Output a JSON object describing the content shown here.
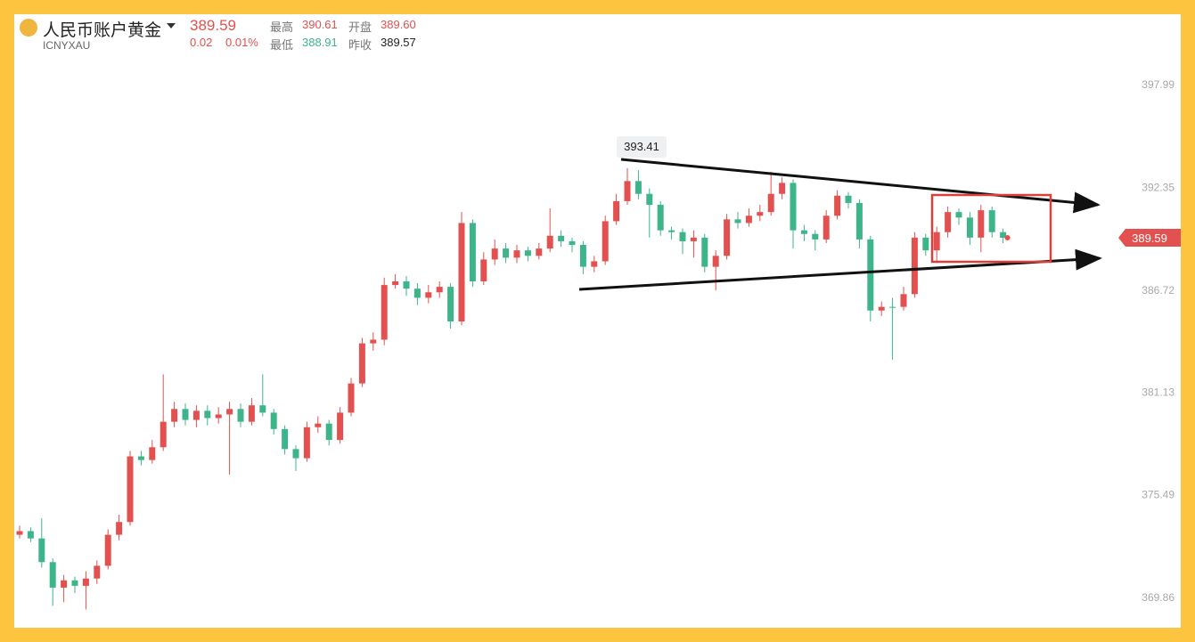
{
  "header": {
    "name": "人民币账户黄金",
    "code": "ICNYXAU",
    "price": "389.59",
    "change": "0.02",
    "change_pct": "0.01%",
    "high_label": "最高",
    "high": "390.61",
    "open_label": "开盘",
    "open": "389.60",
    "low_label": "最低",
    "low": "388.91",
    "prev_label": "昨收",
    "prev": "389.57"
  },
  "chart_data": {
    "type": "candlestick",
    "up_color": "#e2514f",
    "down_color": "#3db489",
    "ylim": [
      368.2,
      401.9
    ],
    "yticks": [
      397.99,
      392.35,
      386.72,
      381.13,
      375.49,
      369.86
    ],
    "categories": [
      null,
      null,
      null,
      null,
      null,
      null,
      null,
      null,
      null,
      null,
      null,
      null,
      null,
      null,
      null,
      null,
      null,
      null,
      null,
      null,
      null,
      null,
      null,
      null,
      null,
      null,
      null,
      null,
      null,
      null,
      null,
      null,
      null,
      null,
      null,
      null,
      null,
      null,
      null,
      null,
      null,
      null,
      null,
      null,
      null,
      null,
      null,
      null,
      null,
      null,
      null,
      null,
      null,
      null,
      null,
      null,
      null,
      null,
      null,
      null,
      null,
      null,
      null,
      null,
      null,
      null,
      null,
      null,
      null,
      null,
      null,
      null,
      null,
      null,
      null,
      null,
      null,
      null,
      null,
      null,
      null,
      null,
      null,
      null,
      null,
      null,
      null,
      null,
      null,
      null
    ],
    "open": [
      373.3,
      373.5,
      373.1,
      371.8,
      370.4,
      370.8,
      370.5,
      370.9,
      371.6,
      373.3,
      374.0,
      377.6,
      377.4,
      378.1,
      379.5,
      380.2,
      379.6,
      380.1,
      379.7,
      379.9,
      380.2,
      379.5,
      380.4,
      380.0,
      379.1,
      378.0,
      377.5,
      379.2,
      379.4,
      378.5,
      380.0,
      381.6,
      383.8,
      384.0,
      387.0,
      387.2,
      386.8,
      386.3,
      386.6,
      386.9,
      385.0,
      390.4,
      387.2,
      388.4,
      389.0,
      388.5,
      388.9,
      388.6,
      389.0,
      389.7,
      389.4,
      389.2,
      388.0,
      388.3,
      390.5,
      391.6,
      392.7,
      392.0,
      391.4,
      390.0,
      389.9,
      389.4,
      389.6,
      388.0,
      388.6,
      390.6,
      390.4,
      390.8,
      391.0,
      392.0,
      392.6,
      390.0,
      389.8,
      389.5,
      390.8,
      391.9,
      391.5,
      389.5,
      385.6,
      385.8,
      385.8,
      386.5,
      389.6,
      388.9,
      389.9,
      391.0,
      390.7,
      389.6,
      391.1,
      389.9
    ],
    "high": [
      373.8,
      373.7,
      374.2,
      372.0,
      371.1,
      371.0,
      371.3,
      371.9,
      373.6,
      374.4,
      377.9,
      377.9,
      378.5,
      382.1,
      380.6,
      380.5,
      380.4,
      380.4,
      380.3,
      380.6,
      380.5,
      380.8,
      382.1,
      380.2,
      379.3,
      378.2,
      379.5,
      379.8,
      379.6,
      380.3,
      381.9,
      384.1,
      384.4,
      387.4,
      387.6,
      387.5,
      387.1,
      387.0,
      387.2,
      387.1,
      391.0,
      390.6,
      388.8,
      389.5,
      389.3,
      389.2,
      389.1,
      389.3,
      391.2,
      390.0,
      389.6,
      389.4,
      388.6,
      390.8,
      392.0,
      393.41,
      393.3,
      392.3,
      391.6,
      390.2,
      390.1,
      390.0,
      389.8,
      388.9,
      390.9,
      391.0,
      391.2,
      391.4,
      393.2,
      392.9,
      392.8,
      390.3,
      390.0,
      391.1,
      392.2,
      392.1,
      391.7,
      389.7,
      386.1,
      386.3,
      386.9,
      389.9,
      389.8,
      390.2,
      391.3,
      391.2,
      391.0,
      391.4,
      391.3,
      390.1
    ],
    "low": [
      373.1,
      372.9,
      371.5,
      369.4,
      369.6,
      370.1,
      369.2,
      370.6,
      371.4,
      373.0,
      373.8,
      377.1,
      377.2,
      377.9,
      379.2,
      379.3,
      379.2,
      379.3,
      379.4,
      376.6,
      379.2,
      379.3,
      379.8,
      378.8,
      377.7,
      376.8,
      377.3,
      378.9,
      378.2,
      378.3,
      379.8,
      381.4,
      383.4,
      383.7,
      386.8,
      386.4,
      385.9,
      386.0,
      386.3,
      384.6,
      384.8,
      386.9,
      387.0,
      388.1,
      388.2,
      388.2,
      388.3,
      388.4,
      388.8,
      389.1,
      388.8,
      387.6,
      387.7,
      388.1,
      390.3,
      391.4,
      391.7,
      389.6,
      389.7,
      389.5,
      388.7,
      388.5,
      387.7,
      386.7,
      388.4,
      390.1,
      390.2,
      390.5,
      390.8,
      391.7,
      389.0,
      389.4,
      388.9,
      389.3,
      390.6,
      391.2,
      389.0,
      385.0,
      385.3,
      382.9,
      385.6,
      386.3,
      388.6,
      388.2,
      389.6,
      390.3,
      389.2,
      388.8,
      389.6,
      389.3
    ],
    "close": [
      373.5,
      373.1,
      371.8,
      370.4,
      370.8,
      370.5,
      370.9,
      371.6,
      373.3,
      374.0,
      377.6,
      377.4,
      378.1,
      379.5,
      380.2,
      379.6,
      380.1,
      379.7,
      379.9,
      380.2,
      379.5,
      380.4,
      380.0,
      379.1,
      378.0,
      377.5,
      379.2,
      379.4,
      378.5,
      380.0,
      381.6,
      383.8,
      384.0,
      387.0,
      387.2,
      386.8,
      386.3,
      386.6,
      386.9,
      385.0,
      390.4,
      387.2,
      388.4,
      389.0,
      388.5,
      388.9,
      388.6,
      389.0,
      389.7,
      389.4,
      389.2,
      388.0,
      388.3,
      390.5,
      391.6,
      392.7,
      392.0,
      391.4,
      390.0,
      389.9,
      389.4,
      389.6,
      388.0,
      388.6,
      390.6,
      390.4,
      390.8,
      391.0,
      392.0,
      392.6,
      390.0,
      389.8,
      389.5,
      390.8,
      391.9,
      391.5,
      389.5,
      385.6,
      385.8,
      385.8,
      386.5,
      389.6,
      388.9,
      389.9,
      391.0,
      390.7,
      389.6,
      391.1,
      389.9,
      389.59
    ]
  }
}
